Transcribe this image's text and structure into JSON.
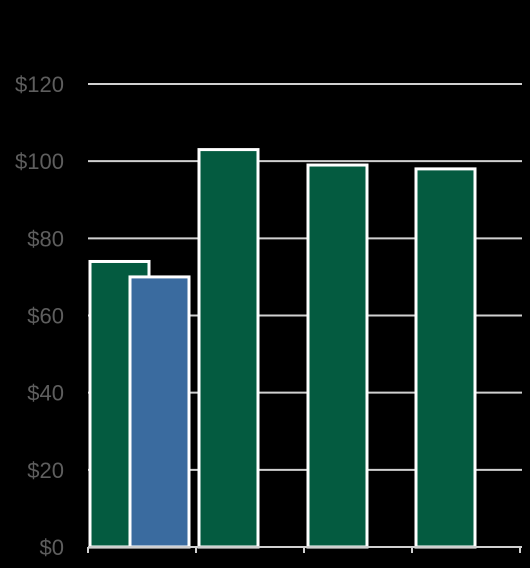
{
  "chart_data": {
    "type": "bar",
    "title": "",
    "xlabel": "",
    "ylabel": "",
    "ylim": [
      0,
      120
    ],
    "y_ticks": [
      "$0",
      "$20",
      "$40",
      "$60",
      "$80",
      "$100",
      "$120"
    ],
    "y_tick_values": [
      0,
      20,
      40,
      60,
      80,
      100,
      120
    ],
    "grid": true,
    "legend": "none",
    "categories": [
      "",
      "",
      "",
      ""
    ],
    "bars": [
      {
        "category_index": 0,
        "slot": 0,
        "value": 74,
        "color": "#045b40"
      },
      {
        "category_index": 0,
        "slot": 1,
        "value": 70,
        "color": "#3a6b9f"
      },
      {
        "category_index": 1,
        "slot": 0,
        "value": 103,
        "color": "#045b40"
      },
      {
        "category_index": 2,
        "slot": 0,
        "value": 99,
        "color": "#045b40"
      },
      {
        "category_index": 3,
        "slot": 0,
        "value": 98,
        "color": "#045b40"
      }
    ],
    "colors": {
      "background": "#000000",
      "grid": "#d0d0d0",
      "tick_label": "#5e5e5e",
      "bar_outline": "#ffffff",
      "primary": "#045b40",
      "secondary": "#3a6b9f"
    }
  }
}
